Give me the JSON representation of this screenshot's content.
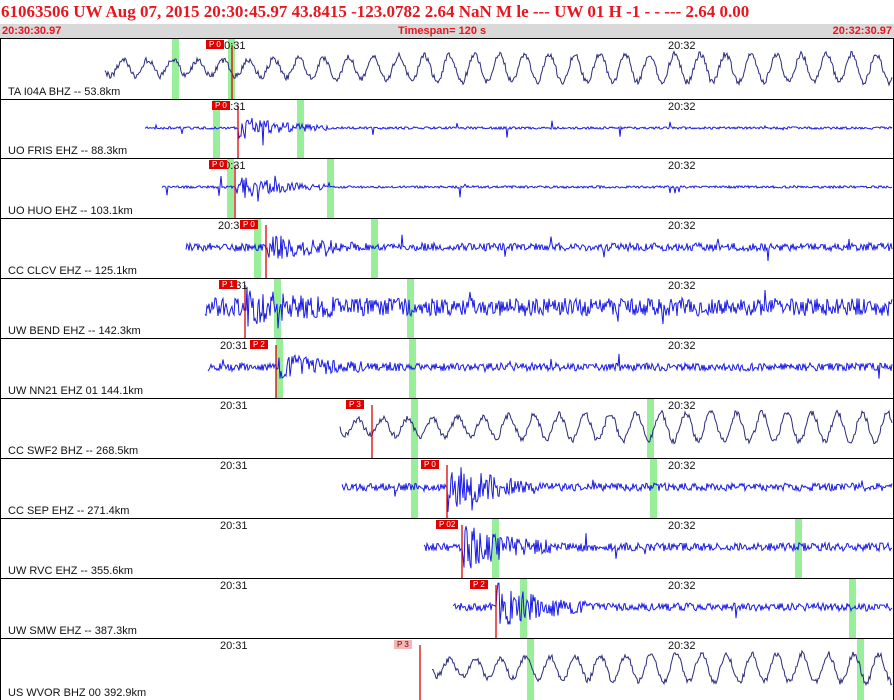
{
  "header": {
    "event_line": "61063506 UW Aug 07, 2015 20:30:45.97   43.8415 -123.0782  2.64  NaN M  le    ---      UW 01 H   -1  -  - ---  2.64 0.00",
    "start_time": "20:30:30.97",
    "timespan": "Timespan= 120 s",
    "end_time": "20:32:30.97"
  },
  "colors": {
    "header_text": "#e8161e",
    "subheader_bg": "#d9d9d9",
    "trace_blue": "#1a1ae6",
    "trace_navy": "#2a2a7a",
    "pick_line": "#dd0000",
    "pick_tag_bg": "#e00000",
    "pick_tag_light_bg": "#f7b6b6",
    "marker_green": "#99ee99",
    "grid_gray": "#c8c8c8"
  },
  "time_labels": {
    "t2031": "20:31",
    "t2032": "20:32"
  },
  "traces": [
    {
      "label": "TA I04A BHZ --  53.8km",
      "pick": "P 0",
      "color": "navy"
    },
    {
      "label": "UO FRIS EHZ --  88.3km",
      "pick": "P 0",
      "color": "blue"
    },
    {
      "label": "UO HUO EHZ --  103.1km",
      "pick": "P 0",
      "color": "blue"
    },
    {
      "label": "CC CLCV EHZ --  125.1km",
      "pick": "P 0",
      "color": "blue"
    },
    {
      "label": "UW BEND EHZ --  142.3km",
      "pick": "P 1",
      "color": "blue"
    },
    {
      "label": "UW NN21 EHZ 01 144.1km",
      "pick": "P 2",
      "color": "blue"
    },
    {
      "label": "CC SWF2 BHZ --  268.5km",
      "pick": "P 3",
      "color": "navy"
    },
    {
      "label": "CC SEP EHZ --  271.4km",
      "pick": "P 0",
      "color": "blue"
    },
    {
      "label": "UW RVC EHZ --  355.6km",
      "pick": "P 02",
      "color": "blue"
    },
    {
      "label": "UW SMW EHZ --  387.3km",
      "pick": "P 2",
      "color": "blue"
    },
    {
      "label": "US WVOR BHZ 00 392.9km",
      "pick": "P 3",
      "color": "navy"
    }
  ]
}
